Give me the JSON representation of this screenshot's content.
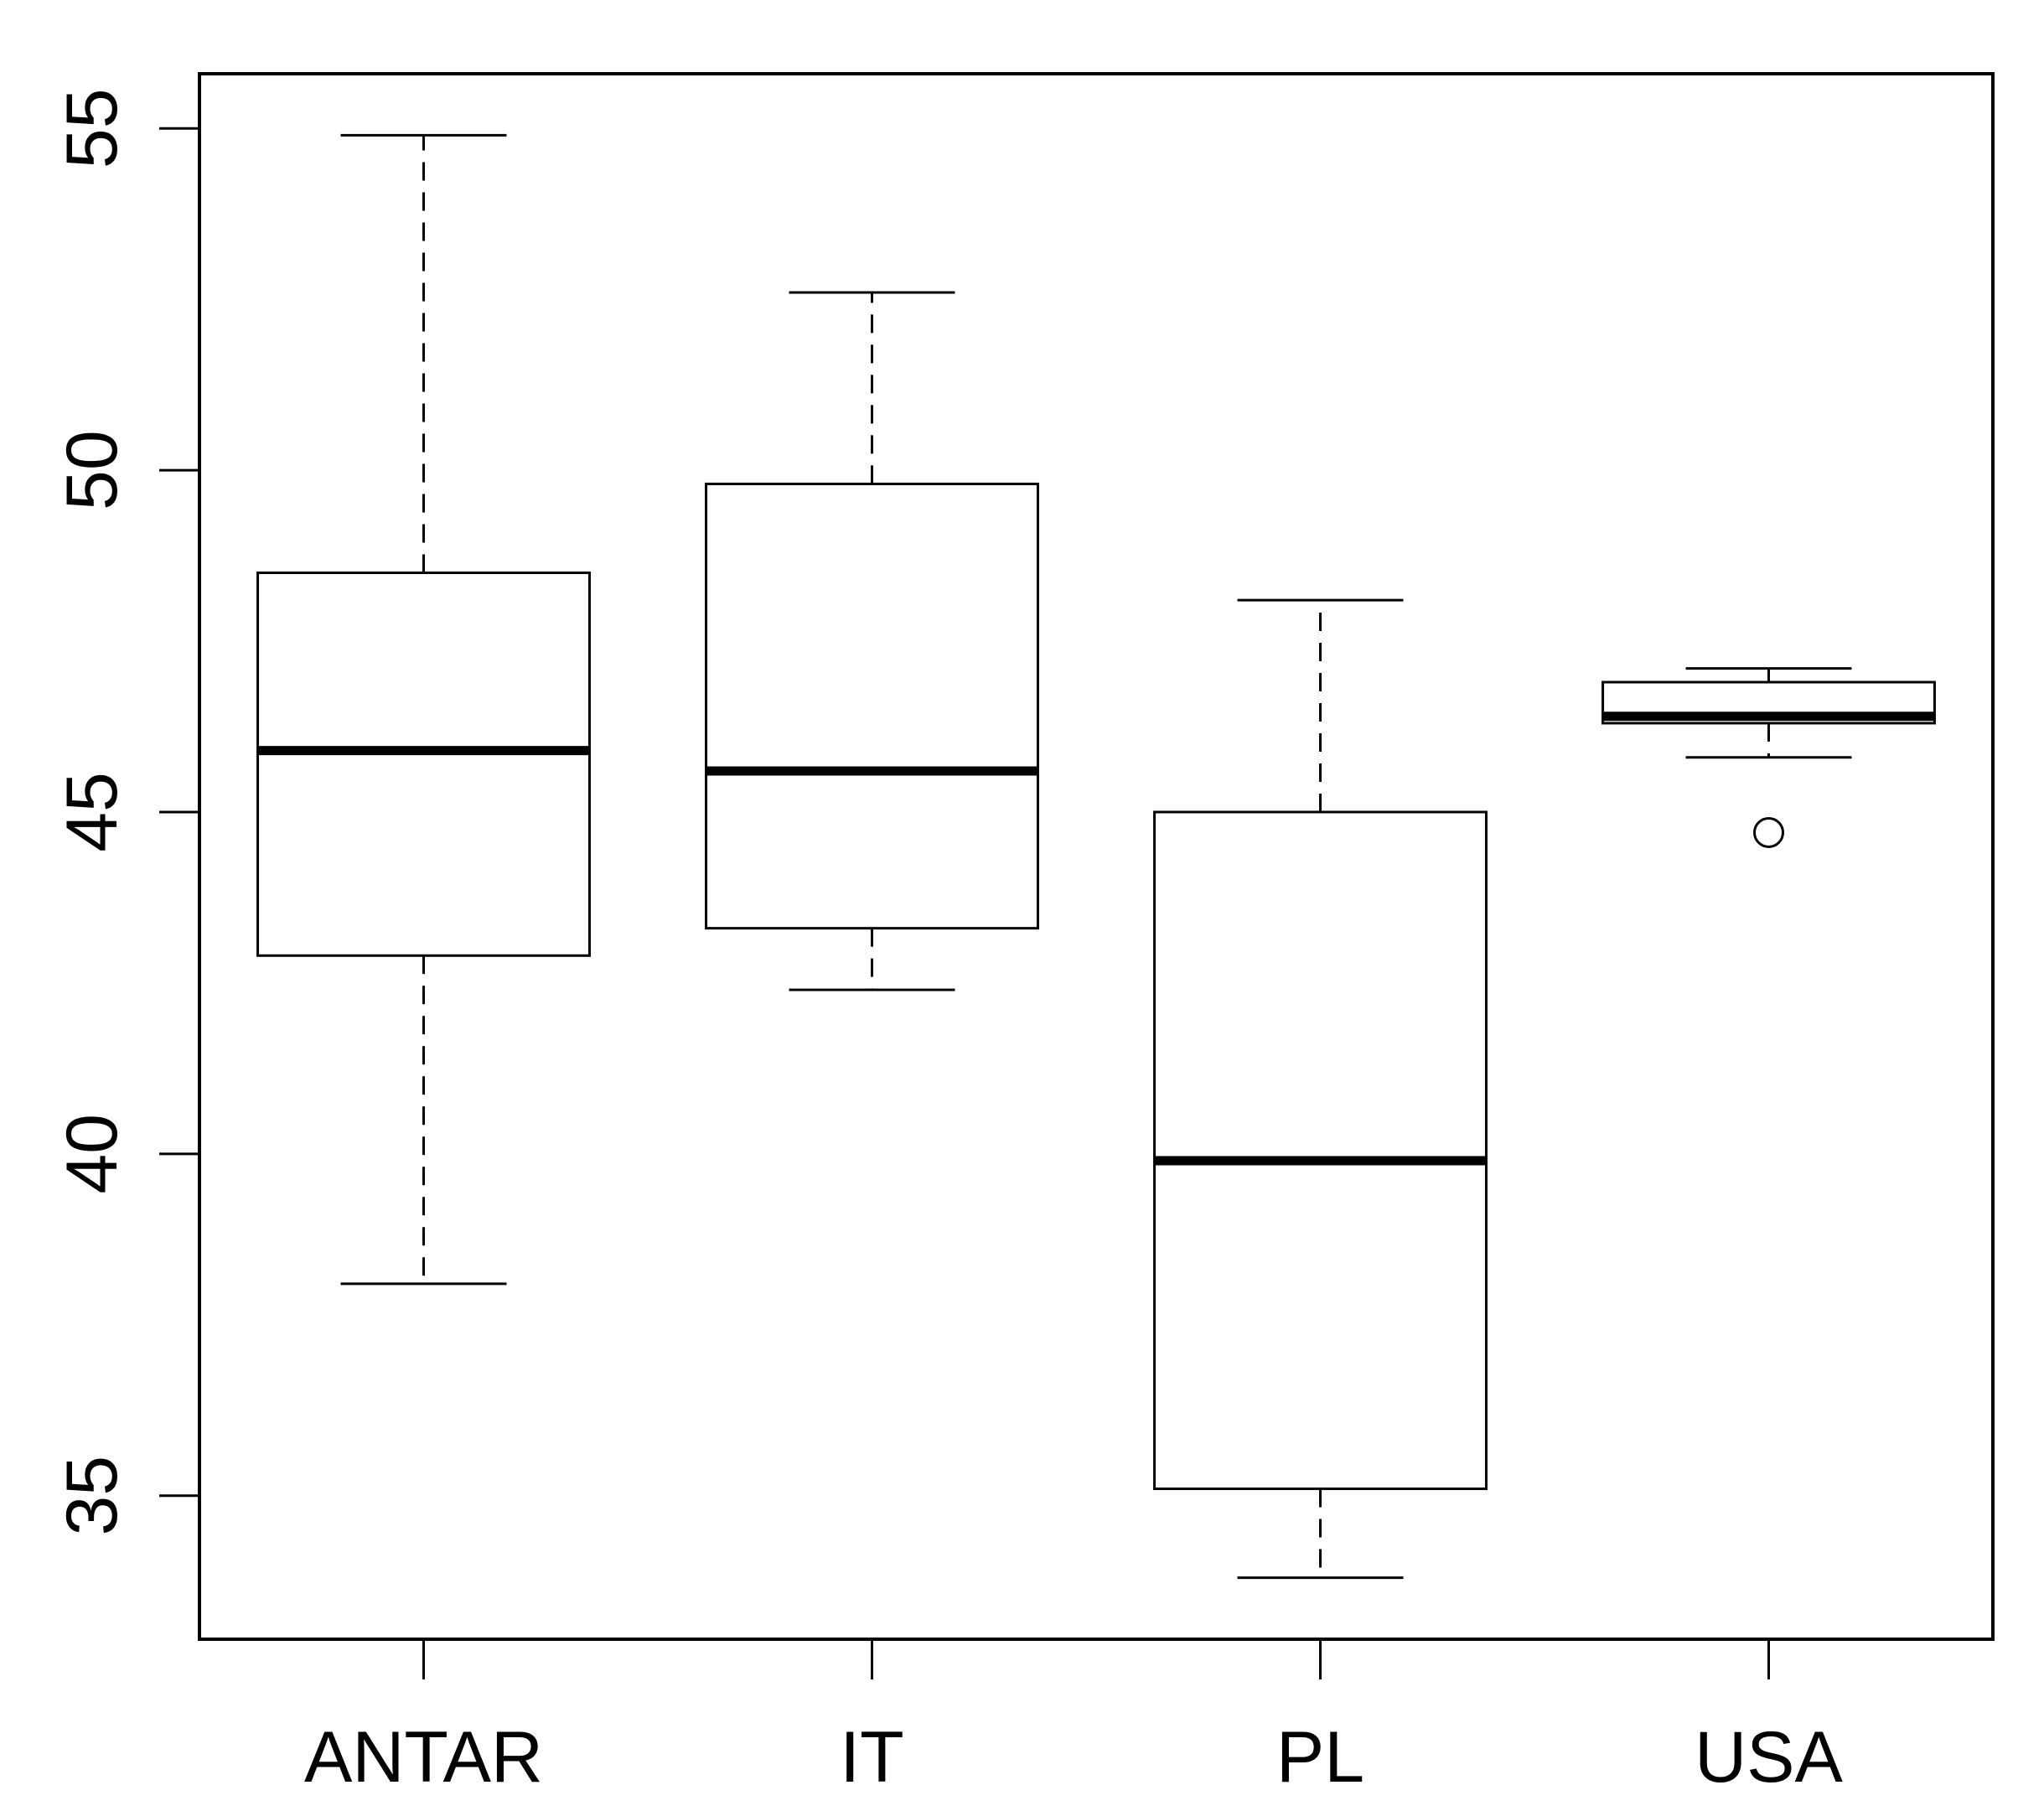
{
  "chart_data": {
    "type": "boxplot",
    "title": "",
    "xlabel": "",
    "ylabel": "",
    "ylim": [
      32.9,
      55.8
    ],
    "yticks": [
      35,
      40,
      45,
      50,
      55
    ],
    "ytick_labels": [
      "35",
      "40",
      "45",
      "50",
      "55"
    ],
    "categories": [
      "ANTAR",
      "IT",
      "PL",
      "USA"
    ],
    "series": [
      {
        "category": "ANTAR",
        "whisker_low": 38.1,
        "q1": 42.9,
        "median": 45.9,
        "q3": 48.5,
        "whisker_high": 54.9,
        "outliers": []
      },
      {
        "category": "IT",
        "whisker_low": 42.4,
        "q1": 43.3,
        "median": 45.6,
        "q3": 49.8,
        "whisker_high": 52.6,
        "outliers": []
      },
      {
        "category": "PL",
        "whisker_low": 33.8,
        "q1": 35.1,
        "median": 39.9,
        "q3": 45.0,
        "whisker_high": 48.1,
        "outliers": []
      },
      {
        "category": "USA",
        "whisker_low": 45.8,
        "q1": 46.3,
        "median": 46.4,
        "q3": 46.9,
        "whisker_high": 47.1,
        "outliers": [
          44.7
        ]
      }
    ],
    "grid": false,
    "legend": "none",
    "colors": {
      "stroke": "#000000",
      "box_fill": "#ffffff"
    }
  }
}
